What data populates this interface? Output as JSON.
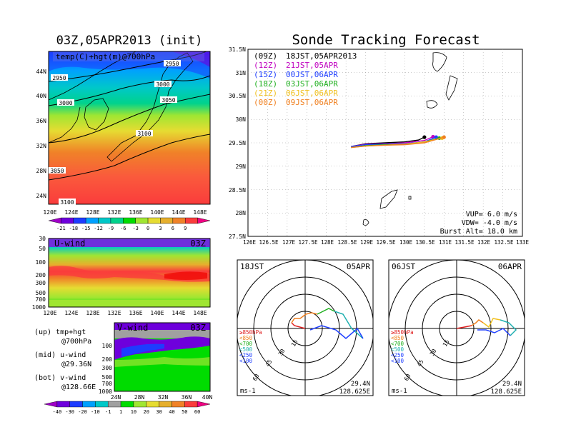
{
  "left_title": "03Z,05APR2013 (init)",
  "right_title": "Sonde Tracking Forecast",
  "colors": {
    "scale_temp": [
      "#a000c8",
      "#6e00dc",
      "#1e3cff",
      "#00a0ff",
      "#00c8c8",
      "#00d28c",
      "#00dc00",
      "#a0e632",
      "#e6dc32",
      "#e6af2d",
      "#f08228",
      "#fa3c3c",
      "#f00082"
    ],
    "scale_wind": [
      "#a000c8",
      "#6e00dc",
      "#1e3cff",
      "#00a0ff",
      "#00c8c8",
      "#a0a0a0",
      "#00dc00",
      "#a0e632",
      "#e6dc32",
      "#e6af2d",
      "#f08228",
      "#fa3c3c",
      "#f00082"
    ],
    "trajectory": [
      "#000000",
      "#c000c0",
      "#2040ff",
      "#20b020",
      "#f0c020",
      "#f08020"
    ]
  },
  "temp_map": {
    "label": "temp(C)+hgt(m)@700hPa",
    "lat_ticks": [
      "44N",
      "40N",
      "36N",
      "32N",
      "28N",
      "24N"
    ],
    "lon_ticks": [
      "120E",
      "124E",
      "128E",
      "132E",
      "136E",
      "140E",
      "144E",
      "148E"
    ],
    "contour_labels": [
      "2950",
      "2950",
      "3000",
      "3000",
      "3050",
      "3050",
      "3100",
      "3100"
    ],
    "colorbar_labels": [
      "-21",
      "-18",
      "-15",
      "-12",
      "-9",
      "-6",
      "-3",
      "0",
      "3",
      "6",
      "9"
    ]
  },
  "uwind": {
    "label": "U-wind",
    "time": "03Z",
    "lev_ticks": [
      "30",
      "50",
      "100",
      "200",
      "300",
      "500",
      "700",
      "1000"
    ],
    "lon_ticks": [
      "120E",
      "124E",
      "128E",
      "132E",
      "136E",
      "140E",
      "144E",
      "148E"
    ]
  },
  "vwind": {
    "label": "V-wind",
    "time": "03Z",
    "lev_ticks": [
      "100",
      "200",
      "300",
      "500",
      "700",
      "1000"
    ],
    "lat_ticks": [
      "24N",
      "28N",
      "32N",
      "36N",
      "40N"
    ],
    "colorbar_labels": [
      "-40",
      "-30",
      "-20",
      "-10",
      "-1",
      "1",
      "10",
      "20",
      "30",
      "40",
      "50",
      "60"
    ]
  },
  "notes": [
    {
      "a": "(up) tmp+hgt",
      "b": "@700hPa"
    },
    {
      "a": "(mid) u-wind",
      "b": "@29.36N"
    },
    {
      "a": "(bot) v-wind",
      "b": "@128.66E"
    }
  ],
  "track": {
    "legend": [
      {
        "code": "(09Z)",
        "text": "18JST,05APR2013"
      },
      {
        "code": "(12Z)",
        "text": "21JST,05APR"
      },
      {
        "code": "(15Z)",
        "text": "00JST,06APR"
      },
      {
        "code": "(18Z)",
        "text": "03JST,06APR"
      },
      {
        "code": "(21Z)",
        "text": "06JST,06APR"
      },
      {
        "code": "(00Z)",
        "text": "09JST,06APR"
      }
    ],
    "lat_ticks": [
      "31.5N",
      "31N",
      "30.5N",
      "30N",
      "29.5N",
      "29N",
      "28.5N",
      "28N",
      "27.5N"
    ],
    "lon_ticks": [
      "126E",
      "126.5E",
      "127E",
      "127.5E",
      "128E",
      "128.5E",
      "129E",
      "129.5E",
      "130E",
      "130.5E",
      "131E",
      "131.5E",
      "132E",
      "132.5E",
      "133E"
    ],
    "info": [
      "VUP= 6.0 m/s",
      "VDW= -4.0 m/s",
      "Burst Alt= 18.0 km"
    ]
  },
  "hodographs": [
    {
      "left": "18JST",
      "right": "05APR",
      "lat": "29.4N",
      "lon": "128.625E",
      "unit": "ms-1"
    },
    {
      "left": "06JST",
      "right": "06APR",
      "lat": "29.4N",
      "lon": "128.625E",
      "unit": "ms-1"
    }
  ],
  "hodo_rings": [
    "15",
    "30",
    "45",
    "60"
  ],
  "hodo_legend": [
    "≥850hPa",
    "<850",
    "<700",
    "<500",
    "<250",
    "<100"
  ],
  "chart_data": [
    {
      "type": "heatmap",
      "title": "temp(C)+hgt(m)@700hPa",
      "x": "longitude",
      "xlim": [
        120,
        150
      ],
      "y": "latitude",
      "ylim": [
        22,
        47
      ],
      "colorbar": [
        -21,
        -18,
        -15,
        -12,
        -9,
        -6,
        -3,
        0,
        3,
        6,
        9
      ],
      "contours": [
        2950,
        3000,
        3050,
        3100
      ]
    },
    {
      "type": "heatmap",
      "title": "U-wind",
      "x": "longitude",
      "xlim": [
        120,
        150
      ],
      "y": "pressure hPa",
      "levels": [
        30,
        50,
        100,
        200,
        300,
        500,
        700,
        1000
      ]
    },
    {
      "type": "heatmap",
      "title": "V-wind",
      "x": "latitude",
      "xlim": [
        24,
        40
      ],
      "y": "pressure hPa",
      "levels": [
        100,
        200,
        300,
        500,
        700,
        1000
      ],
      "colorbar": [
        -40,
        -30,
        -20,
        -10,
        -1,
        1,
        10,
        20,
        30,
        40,
        50,
        60
      ]
    },
    {
      "type": "line",
      "title": "Sonde Tracking Forecast",
      "xlim": [
        126,
        133
      ],
      "ylim": [
        27.5,
        31.5
      ],
      "series": [
        {
          "name": "18JST,05APR2013",
          "x": [
            128.63,
            129.0,
            129.5,
            130.0,
            130.35,
            130.5
          ],
          "y": [
            29.42,
            29.48,
            29.5,
            29.52,
            29.56,
            29.62
          ]
        },
        {
          "name": "21JST,05APR",
          "x": [
            128.63,
            129.0,
            129.5,
            130.0,
            130.5,
            130.72
          ],
          "y": [
            29.42,
            29.47,
            29.48,
            29.5,
            29.55,
            29.63
          ]
        },
        {
          "name": "00JST,06APR",
          "x": [
            128.63,
            129.0,
            129.5,
            130.0,
            130.5,
            130.8
          ],
          "y": [
            29.42,
            29.46,
            29.47,
            29.48,
            29.52,
            29.62
          ]
        },
        {
          "name": "03JST,06APR",
          "x": [
            128.63,
            129.0,
            129.5,
            130.0,
            130.5,
            130.88
          ],
          "y": [
            29.4,
            29.44,
            29.46,
            29.47,
            29.52,
            29.6
          ]
        },
        {
          "name": "06JST,06APR",
          "x": [
            128.63,
            129.0,
            129.5,
            130.0,
            130.5,
            130.95
          ],
          "y": [
            29.4,
            29.43,
            29.45,
            29.47,
            29.52,
            29.6
          ]
        },
        {
          "name": "09JST,06APR",
          "x": [
            128.63,
            129.0,
            129.5,
            130.0,
            130.5,
            131.0
          ],
          "y": [
            29.4,
            29.43,
            29.45,
            29.46,
            29.5,
            29.62
          ]
        }
      ]
    }
  ]
}
